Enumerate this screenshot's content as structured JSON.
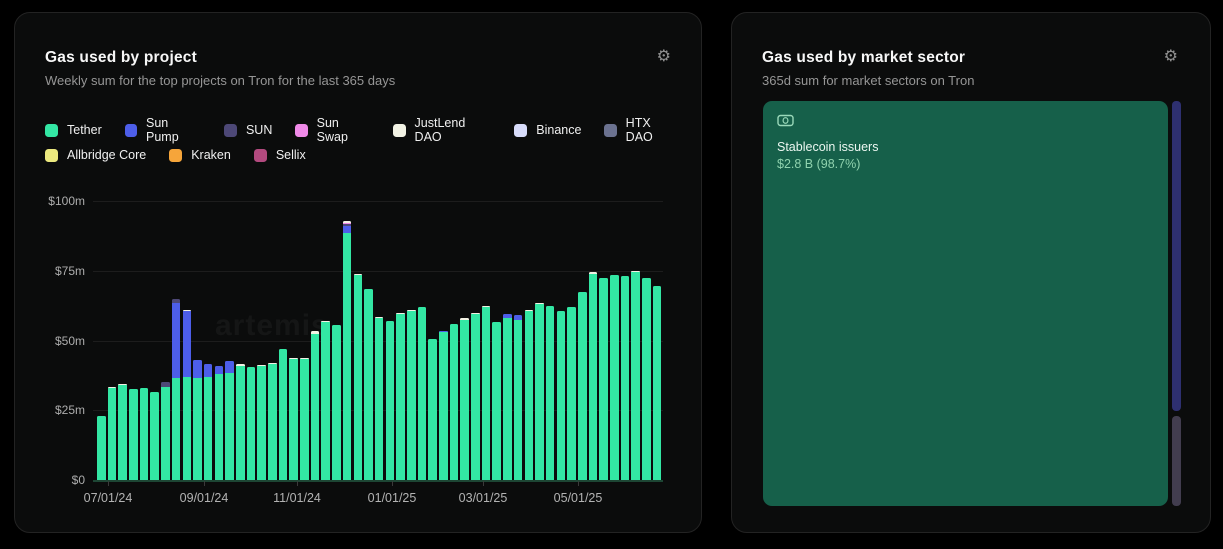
{
  "left_panel": {
    "title": "Gas used by project",
    "subtitle": "Weekly sum for the top projects on Tron for the last 365 days",
    "gear_icon": "⚙",
    "watermark": "artemis",
    "legend": [
      {
        "label": "Tether",
        "color": "#33e7a4"
      },
      {
        "label": "Sun Pump",
        "color": "#4d5ee9"
      },
      {
        "label": "SUN",
        "color": "#4d4877"
      },
      {
        "label": "Sun Swap",
        "color": "#f08ae8"
      },
      {
        "label": "JustLend DAO",
        "color": "#f2f2e4"
      },
      {
        "label": "Binance",
        "color": "#d8dcfa"
      },
      {
        "label": "HTX DAO",
        "color": "#6b7290"
      },
      {
        "label": "Allbridge Core",
        "color": "#ece97f"
      },
      {
        "label": "Kraken",
        "color": "#f6a53a"
      },
      {
        "label": "Sellix",
        "color": "#b34a7f"
      }
    ],
    "chart_data": {
      "type": "bar",
      "stacked": true,
      "title": "Gas used by project",
      "xlabel": "",
      "ylabel": "",
      "ylim": [
        0,
        100
      ],
      "y_ticks": [
        {
          "value": 100,
          "label": "$100m"
        },
        {
          "value": 75,
          "label": "$75m"
        },
        {
          "value": 50,
          "label": "$50m"
        },
        {
          "value": 25,
          "label": "$25m"
        },
        {
          "value": 0,
          "label": "$0"
        }
      ],
      "x_ticks": [
        "07/01/24",
        "09/01/24",
        "11/01/24",
        "01/01/25",
        "03/01/25",
        "05/01/25"
      ],
      "unit": "millions USD per week",
      "series": [
        {
          "name": "Tether",
          "color": "#33e7a4"
        },
        {
          "name": "Sun Pump",
          "color": "#4d5ee9"
        },
        {
          "name": "SUN",
          "color": "#4d4877"
        },
        {
          "name": "Sun Swap",
          "color": "#f08ae8"
        },
        {
          "name": "JustLend DAO",
          "color": "#f2f2e4"
        }
      ],
      "bars": [
        [
          23,
          0,
          0,
          0,
          0
        ],
        [
          33,
          0,
          0,
          0,
          0.4
        ],
        [
          34,
          0,
          0,
          0,
          0.4
        ],
        [
          32.5,
          0,
          0,
          0,
          0
        ],
        [
          33,
          0,
          0,
          0,
          0
        ],
        [
          31.5,
          0,
          0,
          0,
          0
        ],
        [
          33.5,
          0,
          1.5,
          0,
          0
        ],
        [
          36.5,
          27,
          1.5,
          0,
          0
        ],
        [
          37,
          23.5,
          0,
          0,
          0.5
        ],
        [
          36.5,
          6.5,
          0,
          0,
          0
        ],
        [
          37,
          4.5,
          0,
          0,
          0
        ],
        [
          38,
          3,
          0,
          0,
          0
        ],
        [
          38.5,
          4,
          0,
          0,
          0
        ],
        [
          41,
          0,
          0,
          0,
          0.5
        ],
        [
          40.5,
          0,
          0,
          0,
          0
        ],
        [
          41,
          0,
          0,
          0,
          0.4
        ],
        [
          41.5,
          0,
          0,
          0,
          0.4
        ],
        [
          47,
          0,
          0,
          0,
          0
        ],
        [
          43.5,
          0,
          0,
          0,
          0.4
        ],
        [
          43.5,
          0,
          0,
          0,
          0.4
        ],
        [
          52.5,
          0,
          0,
          0,
          1
        ],
        [
          56.5,
          0,
          0,
          0,
          0.5
        ],
        [
          55.5,
          0,
          0,
          0,
          0
        ],
        [
          88.5,
          2.5,
          0.7,
          0.6,
          0.4
        ],
        [
          73.5,
          0,
          0,
          0,
          0.5
        ],
        [
          68.5,
          0,
          0,
          0,
          0
        ],
        [
          58,
          0,
          0,
          0,
          0.5
        ],
        [
          57,
          0,
          0,
          0,
          0
        ],
        [
          59.5,
          0,
          0,
          0,
          0.5
        ],
        [
          60.5,
          0,
          0,
          0,
          0.5
        ],
        [
          62,
          0,
          0,
          0,
          0
        ],
        [
          50.5,
          0,
          0,
          0,
          0
        ],
        [
          53,
          0.5,
          0,
          0,
          0
        ],
        [
          56,
          0,
          0,
          0,
          0
        ],
        [
          57.5,
          0,
          0,
          0,
          0.5
        ],
        [
          59.5,
          0,
          0,
          0,
          0.5
        ],
        [
          62,
          0,
          0,
          0,
          0.5
        ],
        [
          56.5,
          0,
          0,
          0,
          0
        ],
        [
          58,
          1.5,
          0,
          0,
          0
        ],
        [
          57.5,
          1.5,
          0,
          0,
          0
        ],
        [
          60.5,
          0,
          0,
          0,
          0.5
        ],
        [
          63,
          0,
          0,
          0,
          0.5
        ],
        [
          62.5,
          0,
          0,
          0,
          0
        ],
        [
          60.5,
          0,
          0,
          0,
          0
        ],
        [
          62,
          0,
          0,
          0,
          0
        ],
        [
          67.5,
          0,
          0,
          0,
          0
        ],
        [
          74,
          0,
          0,
          0,
          0.5
        ],
        [
          72.5,
          0,
          0,
          0,
          0
        ],
        [
          73.5,
          0,
          0,
          0,
          0
        ],
        [
          73,
          0,
          0,
          0,
          0
        ],
        [
          74.5,
          0,
          0,
          0,
          0.5
        ],
        [
          72.5,
          0,
          0,
          0,
          0
        ],
        [
          69.5,
          0,
          0,
          0,
          0
        ]
      ]
    }
  },
  "right_panel": {
    "title": "Gas used by market sector",
    "subtitle": "365d sum for market sectors on Tron",
    "gear_icon": "⚙",
    "chart_data": {
      "type": "treemap",
      "title": "Gas used by market sector",
      "sectors": [
        {
          "name": "Stablecoin issuers",
          "value_label": "$2.8 B (98.7%)",
          "share_pct": 98.7,
          "color": "#16604a",
          "icon": "banknote-icon"
        },
        {
          "name": "",
          "value_label": "",
          "share_pct": 1.0,
          "color": "#2e3070"
        },
        {
          "name": "",
          "value_label": "",
          "share_pct": 0.3,
          "color": "#423d4f"
        }
      ]
    }
  }
}
